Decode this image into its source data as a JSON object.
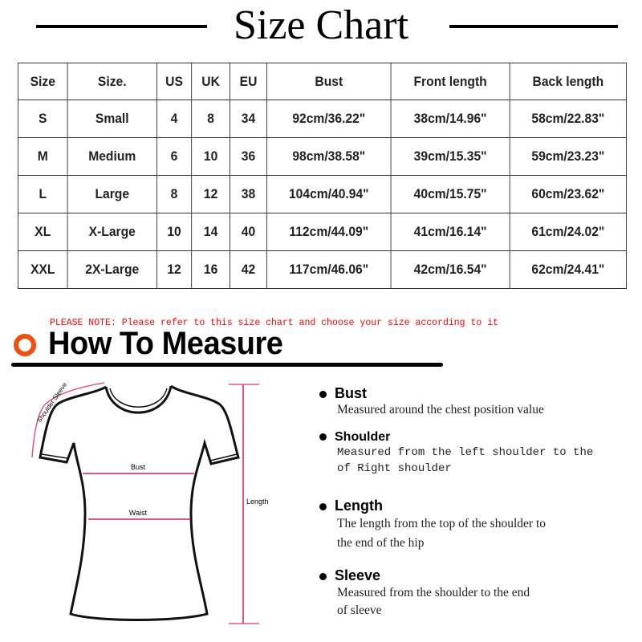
{
  "title": "Size Chart",
  "table": {
    "headers": [
      "Size",
      "Size.",
      "US",
      "UK",
      "EU",
      "Bust",
      "Front length",
      "Back length"
    ],
    "rows": [
      [
        "S",
        "Small",
        "4",
        "8",
        "34",
        "92cm/36.22\"",
        "38cm/14.96\"",
        "58cm/22.83\""
      ],
      [
        "M",
        "Medium",
        "6",
        "10",
        "36",
        "98cm/38.58\"",
        "39cm/15.35\"",
        "59cm/23.23\""
      ],
      [
        "L",
        "Large",
        "8",
        "12",
        "38",
        "104cm/40.94\"",
        "40cm/15.75\"",
        "60cm/23.62\""
      ],
      [
        "XL",
        "X-Large",
        "10",
        "14",
        "40",
        "112cm/44.09\"",
        "41cm/16.14\"",
        "61cm/24.02\""
      ],
      [
        "XXL",
        "2X-Large",
        "12",
        "16",
        "42",
        "117cm/46.06\"",
        "42cm/16.54\"",
        "62cm/24.41\""
      ]
    ]
  },
  "note": "PLEASE NOTE: Please refer to this size chart and choose your size according to it",
  "how_to_measure": {
    "title": "How To Measure",
    "accent_color": "#f24e0e",
    "diagram_labels": {
      "shoulder_sleeve": "Shoulder Sleeve",
      "bust": "Bust",
      "waist": "Waist",
      "length": "Length"
    },
    "items": [
      {
        "name": "Bust",
        "desc": [
          "Measured around the chest position value"
        ]
      },
      {
        "name": "Shoulder",
        "desc": [
          "Measured from the left shoulder to the",
          "of Right shoulder"
        ]
      },
      {
        "name": "Length",
        "desc": [
          "The length from the top of the shoulder to",
          "the end of the hip"
        ]
      },
      {
        "name": "Sleeve",
        "desc": [
          "Measured from the shoulder to the end",
          "of sleeve"
        ]
      }
    ]
  }
}
